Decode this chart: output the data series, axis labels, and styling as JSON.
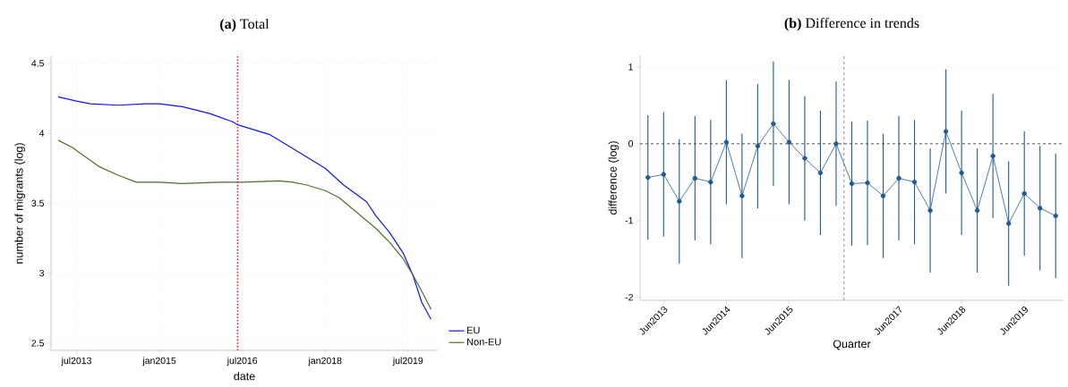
{
  "chart_data": [
    {
      "type": "line",
      "title": "**(a)** Total",
      "xlabel": "date",
      "ylabel": "number of migrants (log)",
      "xlim": [
        "2013-01-15",
        "2020-01-15"
      ],
      "ylim": [
        2.448,
        4.55
      ],
      "xticks": [
        {
          "value": "2013-07",
          "label": "jul2013"
        },
        {
          "value": "2015-01",
          "label": "jan2015"
        },
        {
          "value": "2016-07",
          "label": "jul2016"
        },
        {
          "value": "2018-01",
          "label": "jan2018"
        },
        {
          "value": "2019-07",
          "label": "jul2019"
        }
      ],
      "yticks": [
        2.5,
        3,
        3.5,
        4,
        4.5
      ],
      "grid": true,
      "legend": "bottom right",
      "marker": "none",
      "line_style": "solid",
      "ref_lines": [
        {
          "axis": "x",
          "value": "2016-06",
          "color": "#e0202a",
          "line_style": "dotted"
        }
      ],
      "series": [
        {
          "name": "EU",
          "color": "#1414f0",
          "x": [
            "2013-03",
            "2013-07",
            "2013-10",
            "2014-04",
            "2014-10",
            "2015-01",
            "2015-06",
            "2015-12",
            "2016-05",
            "2016-06",
            "2017-01",
            "2017-04",
            "2017-08",
            "2018-01",
            "2018-05",
            "2018-10",
            "2018-12",
            "2019-03",
            "2019-06",
            "2019-08",
            "2019-10",
            "2019-12"
          ],
          "values": [
            4.26,
            4.23,
            4.21,
            4.2,
            4.21,
            4.21,
            4.19,
            4.14,
            4.08,
            4.06,
            3.99,
            3.93,
            3.85,
            3.75,
            3.63,
            3.51,
            3.41,
            3.29,
            3.14,
            2.99,
            2.79,
            2.67
          ]
        },
        {
          "name": "Non-EU",
          "color": "#4f6f2a",
          "x": [
            "2013-03",
            "2013-06",
            "2013-12",
            "2014-04",
            "2014-08",
            "2015-01",
            "2015-06",
            "2016-02",
            "2016-07",
            "2017-03",
            "2017-06",
            "2017-09",
            "2018-01",
            "2018-04",
            "2018-08",
            "2018-12",
            "2019-03",
            "2019-06",
            "2019-08",
            "2019-10",
            "2019-12"
          ],
          "values": [
            3.95,
            3.9,
            3.76,
            3.7,
            3.65,
            3.65,
            3.64,
            3.65,
            3.65,
            3.66,
            3.65,
            3.63,
            3.59,
            3.54,
            3.43,
            3.32,
            3.22,
            3.1,
            2.99,
            2.87,
            2.74
          ]
        }
      ]
    },
    {
      "type": "line",
      "title": "**(b)** Difference in trends",
      "xlabel": "Quarter",
      "ylabel": "difference (log)",
      "categories": [
        null,
        "Jun2013",
        null,
        null,
        null,
        "Jun2014",
        null,
        null,
        null,
        "Jun2015",
        null,
        null,
        null,
        null,
        null,
        null,
        "Jun2017",
        null,
        null,
        null,
        "Jun2018",
        null,
        null,
        null,
        "Jun2019",
        null,
        null
      ],
      "ylim": [
        -2.04,
        1.15
      ],
      "yticks": [
        -2,
        -1,
        0,
        1
      ],
      "grid": "y",
      "marker": "circle",
      "line_style": "solid",
      "ref_lines": [
        {
          "axis": "y",
          "value": 0,
          "color": "#8c8c8c",
          "line_style": "dashed"
        }
      ],
      "series": [
        {
          "color": "#1f5a96",
          "values": [
            -0.44,
            -0.4,
            -0.75,
            -0.45,
            -0.5,
            0.02,
            -0.68,
            -0.03,
            0.26,
            0.02,
            -0.19,
            -0.38,
            0.0,
            -0.52,
            -0.51,
            -0.68,
            -0.45,
            -0.5,
            -0.87,
            0.16,
            -0.38,
            -0.87,
            -0.16,
            -1.04,
            -0.65,
            -0.84,
            -0.94
          ],
          "errors": [
            0.81,
            0.81,
            0.81,
            0.81,
            0.81,
            0.81,
            0.81,
            0.81,
            0.81,
            0.81,
            0.81,
            0.81,
            0.81,
            0.81,
            0.81,
            0.81,
            0.81,
            0.81,
            0.81,
            0.81,
            0.81,
            0.81,
            0.81,
            0.81,
            0.81,
            0.81,
            0.81
          ]
        }
      ]
    }
  ]
}
